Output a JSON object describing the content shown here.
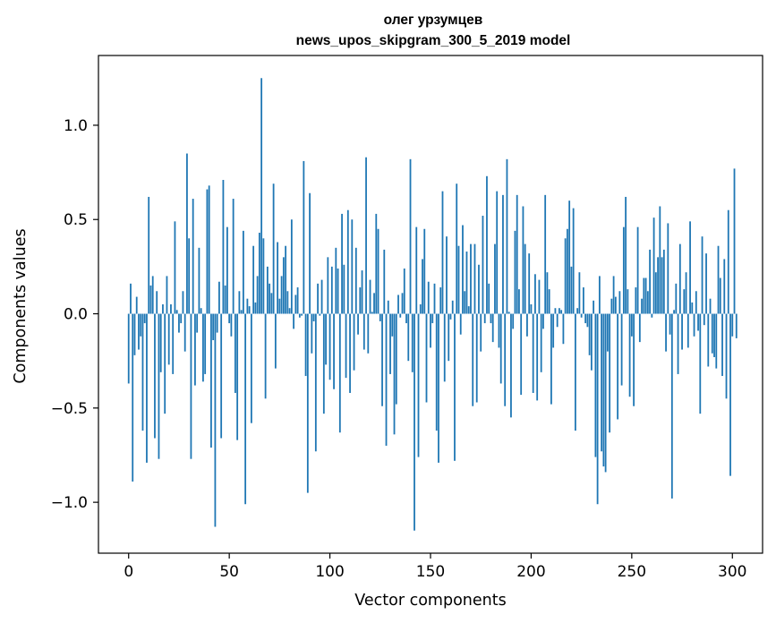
{
  "chart_data": {
    "type": "bar",
    "title": "олег урзумцев",
    "subtitle": "news_upos_skipgram_300_5_2019 model",
    "xlabel": "Vector components",
    "ylabel": "Components values",
    "xlim": [
      -15,
      315
    ],
    "ylim": [
      -1.27,
      1.37
    ],
    "xticks": [
      0,
      50,
      100,
      150,
      200,
      250,
      300
    ],
    "xtick_labels": [
      "0",
      "50",
      "100",
      "150",
      "200",
      "250",
      "300"
    ],
    "yticks": [
      -1.0,
      -0.5,
      0.0,
      0.5,
      1.0
    ],
    "ytick_labels": [
      "−1.0",
      "−0.5",
      "0.0",
      "0.5",
      "1.0"
    ],
    "bar_color": "#1f77b4",
    "grid": false,
    "series": [
      {
        "name": "components",
        "values": [
          -0.37,
          0.16,
          -0.89,
          -0.22,
          0.09,
          -0.19,
          -0.12,
          -0.62,
          -0.05,
          -0.79,
          0.62,
          0.15,
          0.2,
          -0.66,
          0.12,
          -0.77,
          -0.31,
          0.05,
          -0.53,
          0.2,
          -0.27,
          0.05,
          -0.32,
          0.49,
          0.02,
          -0.1,
          -0.05,
          0.12,
          -0.2,
          0.85,
          0.4,
          -0.77,
          0.61,
          -0.38,
          -0.1,
          0.35,
          0.03,
          -0.36,
          -0.32,
          0.66,
          0.68,
          -0.71,
          -0.14,
          -1.13,
          -0.1,
          0.17,
          -0.66,
          0.71,
          0.15,
          0.46,
          -0.05,
          -0.12,
          0.61,
          -0.42,
          -0.67,
          0.12,
          0.02,
          0.44,
          -1.01,
          0.08,
          0.04,
          -0.58,
          0.36,
          0.06,
          0.2,
          0.43,
          1.25,
          0.4,
          -0.45,
          0.25,
          0.16,
          0.11,
          0.69,
          -0.29,
          0.38,
          0.08,
          0.2,
          0.3,
          0.36,
          0.12,
          0.03,
          0.5,
          -0.08,
          0.1,
          0.14,
          -0.02,
          -0.01,
          0.81,
          -0.33,
          -0.95,
          0.64,
          -0.21,
          -0.04,
          -0.73,
          0.16,
          -0.01,
          0.18,
          -0.53,
          -0.27,
          0.3,
          -0.35,
          0.25,
          -0.4,
          0.35,
          0.24,
          -0.63,
          0.53,
          0.26,
          -0.34,
          0.55,
          -0.42,
          0.5,
          -0.3,
          0.35,
          -0.11,
          0.14,
          0.23,
          -0.19,
          0.83,
          -0.21,
          0.18,
          0.01,
          0.11,
          0.53,
          0.45,
          -0.04,
          -0.49,
          0.34,
          -0.7,
          0.07,
          -0.32,
          -0.12,
          -0.64,
          -0.48,
          0.1,
          -0.02,
          0.11,
          0.24,
          -0.05,
          -0.25,
          0.82,
          -0.31,
          -1.15,
          0.46,
          -0.76,
          0.05,
          0.29,
          0.45,
          -0.47,
          0.17,
          -0.18,
          -0.05,
          0.16,
          -0.62,
          -0.79,
          0.14,
          0.65,
          -0.36,
          0.41,
          -0.25,
          -0.03,
          0.07,
          -0.78,
          0.69,
          0.36,
          -0.11,
          0.47,
          0.12,
          0.33,
          0.04,
          0.37,
          -0.49,
          0.37,
          -0.47,
          0.26,
          -0.2,
          0.52,
          -0.05,
          0.73,
          0.16,
          -0.05,
          -0.15,
          0.37,
          0.65,
          -0.18,
          -0.37,
          0.63,
          -0.49,
          0.82,
          0.01,
          -0.55,
          -0.08,
          0.44,
          0.63,
          0.13,
          -0.43,
          0.57,
          0.37,
          -0.12,
          0.32,
          0.05,
          -0.42,
          0.21,
          -0.46,
          0.18,
          -0.31,
          -0.08,
          0.63,
          0.22,
          0.13,
          -0.48,
          -0.18,
          0.03,
          -0.07,
          0.03,
          0.02,
          -0.16,
          0.4,
          0.45,
          0.6,
          0.25,
          0.56,
          -0.62,
          0.03,
          0.22,
          -0.02,
          0.14,
          -0.05,
          -0.07,
          -0.22,
          -0.3,
          0.07,
          -0.76,
          -1.01,
          0.2,
          -0.73,
          -0.81,
          -0.84,
          -0.2,
          -0.63,
          0.08,
          0.2,
          0.09,
          -0.56,
          0.12,
          -0.38,
          0.46,
          0.62,
          0.13,
          -0.44,
          -0.12,
          -0.49,
          0.14,
          0.46,
          -0.15,
          0.08,
          0.19,
          0.19,
          0.12,
          0.34,
          -0.02,
          0.51,
          0.22,
          0.3,
          0.57,
          0.3,
          0.34,
          -0.2,
          0.48,
          -0.11,
          -0.98,
          0.02,
          0.16,
          -0.32,
          0.37,
          -0.19,
          0.13,
          0.22,
          -0.18,
          0.49,
          0.06,
          -0.12,
          0.12,
          -0.09,
          -0.53,
          0.41,
          -0.06,
          0.32,
          -0.28,
          0.08,
          -0.21,
          -0.23,
          -0.29,
          0.36,
          0.19,
          -0.33,
          0.29,
          -0.45,
          0.55,
          -0.86,
          -0.12,
          0.77,
          -0.13
        ]
      }
    ]
  }
}
